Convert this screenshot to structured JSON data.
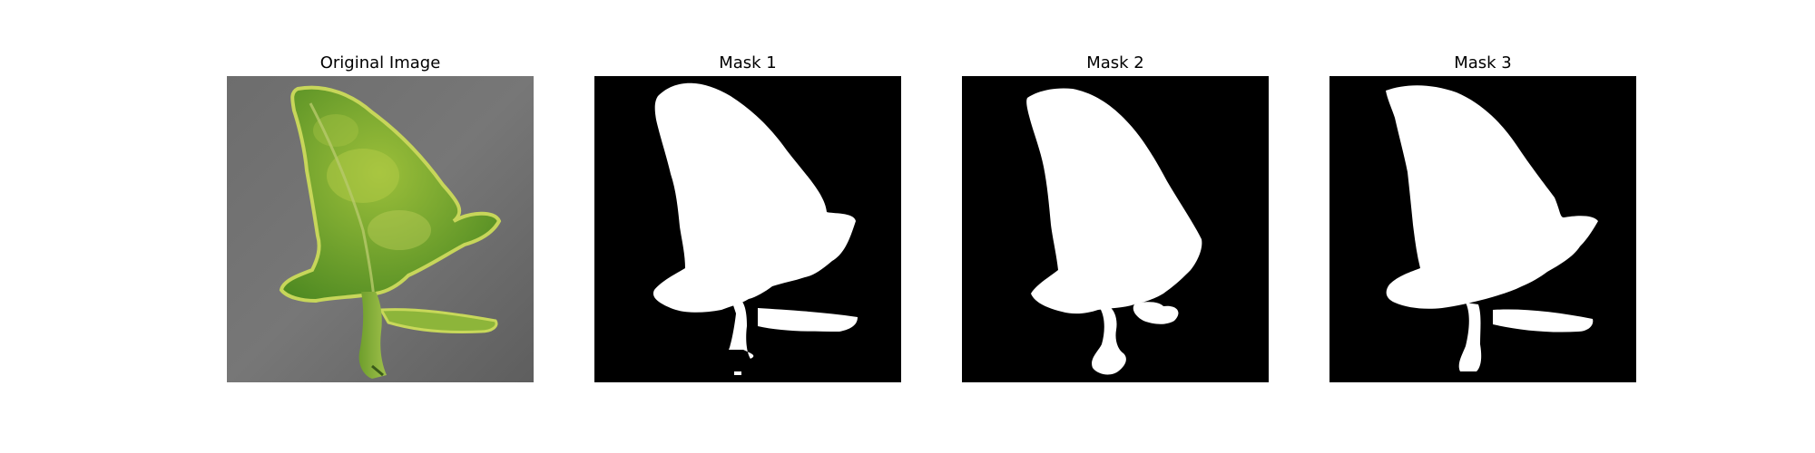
{
  "panels": [
    {
      "title": "Original Image"
    },
    {
      "title": "Mask 1"
    },
    {
      "title": "Mask 2"
    },
    {
      "title": "Mask 3"
    }
  ],
  "colors": {
    "background": "#ffffff",
    "mask_foreground": "#ffffff",
    "mask_background": "#000000",
    "leaf_green": "#7fae2e",
    "leaf_highlight": "#c8d85a",
    "surface_gray": "#6f6f6f"
  }
}
